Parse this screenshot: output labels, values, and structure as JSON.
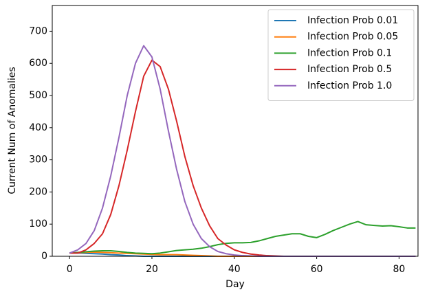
{
  "chart_data": {
    "type": "line",
    "x_label": "Day",
    "y_label": "Current Num of Anomalies",
    "x": [
      0,
      2,
      4,
      6,
      8,
      10,
      12,
      14,
      16,
      18,
      20,
      22,
      24,
      26,
      28,
      30,
      32,
      34,
      36,
      38,
      40,
      42,
      44,
      46,
      48,
      50,
      52,
      54,
      56,
      58,
      60,
      62,
      64,
      66,
      68,
      70,
      72,
      74,
      76,
      78,
      80,
      82,
      84
    ],
    "series": [
      {
        "name": "Infection Prob 0.01",
        "color": "#1f77b4",
        "values": [
          10,
          10,
          9,
          8,
          7,
          5,
          4,
          2,
          1,
          0,
          0,
          0,
          0,
          0,
          0,
          0,
          0,
          0,
          0,
          0,
          0,
          0,
          0,
          0,
          0,
          0,
          0,
          0,
          0,
          0,
          0,
          0,
          0,
          0,
          0,
          0,
          0,
          0,
          0,
          0,
          0,
          0,
          0
        ]
      },
      {
        "name": "Infection Prob 0.05",
        "color": "#ff7f0e",
        "values": [
          10,
          11,
          12,
          13,
          12,
          11,
          10,
          9,
          8,
          7,
          6,
          5,
          5,
          5,
          4,
          3,
          2,
          1,
          0,
          0,
          0,
          0,
          0,
          0,
          0,
          0,
          0,
          0,
          0,
          0,
          0,
          0,
          0,
          0,
          0,
          0,
          0,
          0,
          0,
          0,
          0,
          0,
          0
        ]
      },
      {
        "name": "Infection Prob 0.1",
        "color": "#2ca02c",
        "values": [
          10,
          12,
          14,
          16,
          17,
          17,
          15,
          12,
          10,
          9,
          8,
          10,
          14,
          18,
          20,
          22,
          25,
          30,
          36,
          40,
          42,
          42,
          43,
          48,
          55,
          62,
          66,
          70,
          70,
          62,
          58,
          68,
          80,
          90,
          100,
          108,
          98,
          96,
          94,
          95,
          92,
          88,
          88
        ]
      },
      {
        "name": "Infection Prob 0.5",
        "color": "#d62728",
        "values": [
          10,
          10,
          20,
          40,
          70,
          130,
          220,
          330,
          450,
          560,
          610,
          590,
          520,
          420,
          310,
          220,
          150,
          95,
          55,
          35,
          20,
          12,
          7,
          4,
          2,
          1,
          0,
          0,
          0,
          0,
          0,
          0,
          0,
          0,
          0,
          0,
          0,
          0,
          0,
          0,
          0,
          0,
          0
        ]
      },
      {
        "name": "Infection Prob 1.0",
        "color": "#9467bd",
        "values": [
          10,
          20,
          40,
          80,
          150,
          250,
          370,
          500,
          600,
          655,
          620,
          520,
          390,
          270,
          170,
          100,
          55,
          30,
          15,
          8,
          4,
          2,
          1,
          0,
          0,
          0,
          0,
          0,
          0,
          0,
          0,
          0,
          0,
          0,
          0,
          0,
          0,
          0,
          0,
          0,
          0,
          0,
          0
        ]
      }
    ],
    "xlim": [
      -4.2,
      84.6
    ],
    "ylim": [
      0,
      780
    ],
    "xticks": [
      0,
      20,
      40,
      60,
      80
    ],
    "yticks": [
      0,
      100,
      200,
      300,
      400,
      500,
      600,
      700
    ],
    "legend": "upper right"
  }
}
